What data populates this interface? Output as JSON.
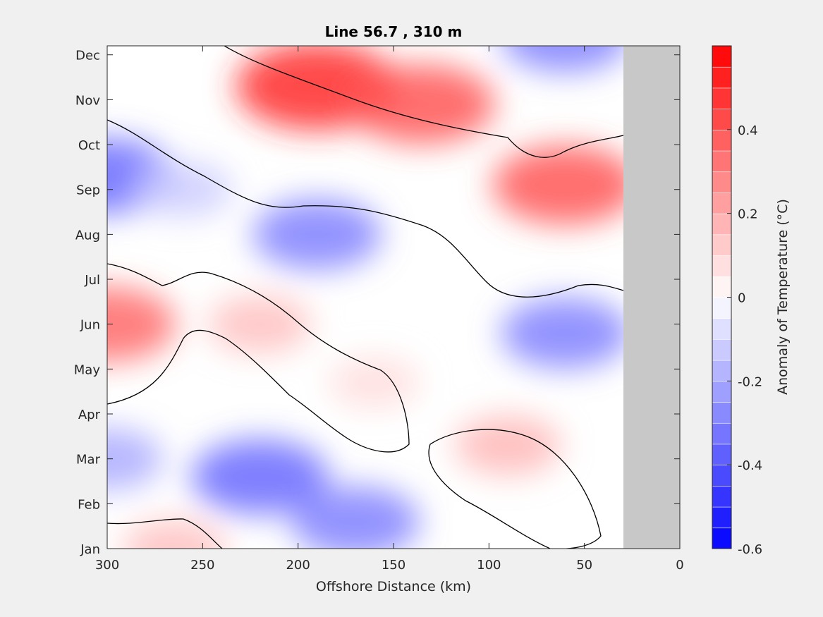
{
  "chart_data": {
    "type": "contour",
    "title": "Line 56.7 , 310 m",
    "xlabel": "Offshore Distance (km)",
    "ylabel": "",
    "x_reversed": true,
    "xlim": [
      0,
      300
    ],
    "x_ticks": [
      300,
      250,
      200,
      150,
      100,
      50,
      0
    ],
    "y_ticks": [
      "Jan",
      "Feb",
      "Mar",
      "Apr",
      "May",
      "Jun",
      "Jul",
      "Aug",
      "Sep",
      "Oct",
      "Nov",
      "Dec"
    ],
    "no_data_region_km": [
      0,
      30
    ],
    "no_data_color": "#c8c8c8",
    "zero_contour_color": "#000000",
    "colorbar": {
      "label": "Anomaly of Temperature (°C)",
      "clim": [
        -0.6,
        0.6
      ],
      "step": 0.05,
      "ticks": [
        "0.4",
        "0.2",
        "0",
        "-0.2",
        "-0.4",
        "-0.6"
      ],
      "tick_values": [
        0.4,
        0.2,
        0,
        -0.2,
        -0.4,
        -0.6
      ],
      "colormap": "blue-white-red",
      "neg_color": "#0000ff",
      "pos_color": "#ff0000"
    },
    "features": [
      {
        "x_km": 190,
        "month": 10.3,
        "anomaly": 0.5
      },
      {
        "x_km": 135,
        "month": 9.9,
        "anomaly": 0.4
      },
      {
        "x_km": 60,
        "month": 8.1,
        "anomaly": 0.4
      },
      {
        "x_km": 300,
        "month": 5.0,
        "anomaly": 0.35
      },
      {
        "x_km": 220,
        "month": 5.0,
        "anomaly": 0.15
      },
      {
        "x_km": 160,
        "month": 3.7,
        "anomaly": 0.08
      },
      {
        "x_km": 90,
        "month": 2.3,
        "anomaly": 0.17
      },
      {
        "x_km": 265,
        "month": 0.0,
        "anomaly": 0.15
      },
      {
        "x_km": 300,
        "month": 8.3,
        "anomaly": -0.35
      },
      {
        "x_km": 190,
        "month": 7.0,
        "anomaly": -0.3
      },
      {
        "x_km": 60,
        "month": 11.4,
        "anomaly": -0.3
      },
      {
        "x_km": 60,
        "month": 4.8,
        "anomaly": -0.3
      },
      {
        "x_km": 220,
        "month": 1.6,
        "anomaly": -0.35
      },
      {
        "x_km": 170,
        "month": 0.6,
        "anomaly": -0.3
      },
      {
        "x_km": 300,
        "month": 2.0,
        "anomaly": -0.2
      },
      {
        "x_km": 260,
        "month": 8.0,
        "anomaly": -0.12
      }
    ]
  }
}
